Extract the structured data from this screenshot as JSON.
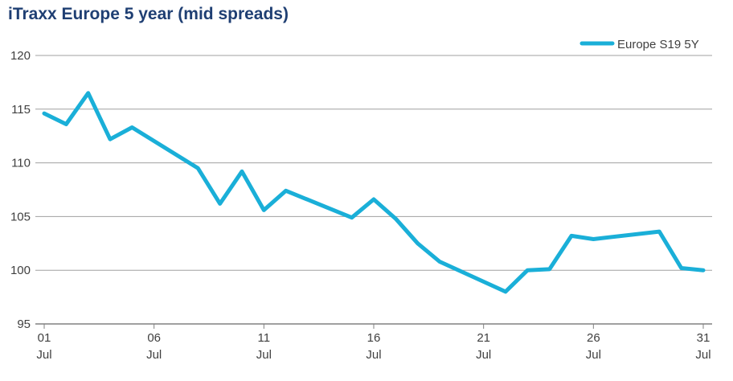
{
  "title": "iTraxx Europe 5 year (mid spreads)",
  "colors": {
    "series": "#1aafd8",
    "grid": "#a0a0a0",
    "axis": "#808080",
    "title": "#1f3f73"
  },
  "chart_data": {
    "type": "line",
    "title": "iTraxx Europe 5 year (mid spreads)",
    "xlabel": "",
    "ylabel": "",
    "ylim": [
      95,
      120
    ],
    "yticks": [
      95,
      100,
      105,
      110,
      115,
      120
    ],
    "xlim": [
      1,
      31
    ],
    "xticks": [
      {
        "value": 1,
        "day": "01",
        "month": "Jul"
      },
      {
        "value": 6,
        "day": "06",
        "month": "Jul"
      },
      {
        "value": 11,
        "day": "11",
        "month": "Jul"
      },
      {
        "value": 16,
        "day": "16",
        "month": "Jul"
      },
      {
        "value": 21,
        "day": "21",
        "month": "Jul"
      },
      {
        "value": 26,
        "day": "26",
        "month": "Jul"
      },
      {
        "value": 31,
        "day": "31",
        "month": "Jul"
      }
    ],
    "grid": true,
    "legend_position": "top-right",
    "series": [
      {
        "name": "Europe S19 5Y",
        "x": [
          1,
          2,
          3,
          4,
          5,
          8,
          9,
          10,
          11,
          12,
          15,
          16,
          17,
          18,
          19,
          22,
          23,
          24,
          25,
          26,
          29,
          30,
          31
        ],
        "values": [
          114.6,
          113.6,
          116.5,
          112.2,
          113.3,
          109.5,
          106.2,
          109.2,
          105.6,
          107.4,
          104.9,
          106.6,
          104.8,
          102.5,
          100.8,
          98.0,
          100.0,
          100.1,
          103.2,
          102.9,
          103.6,
          100.2,
          100.0
        ]
      }
    ]
  }
}
